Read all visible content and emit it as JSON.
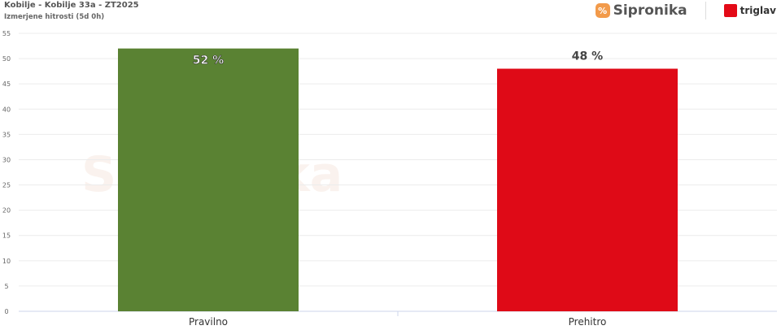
{
  "header": {
    "title": "Kobilje - Kobilje 33a - ZT2025",
    "subtitle": "Izmerjene hitrosti (5d 0h)"
  },
  "logos": {
    "sipronika": "Sipronika",
    "triglav": "triglav"
  },
  "chart_data": {
    "type": "bar",
    "categories": [
      "Pravilno",
      "Prehitro"
    ],
    "values": [
      52,
      48
    ],
    "data_labels": [
      "52 %",
      "48 %"
    ],
    "colors": [
      "#5a8233",
      "#df0a17"
    ],
    "ylim": [
      0,
      55
    ],
    "yticks": [
      0,
      5,
      10,
      15,
      20,
      25,
      30,
      35,
      40,
      45,
      50,
      55
    ],
    "grid": true,
    "legend": "none"
  }
}
